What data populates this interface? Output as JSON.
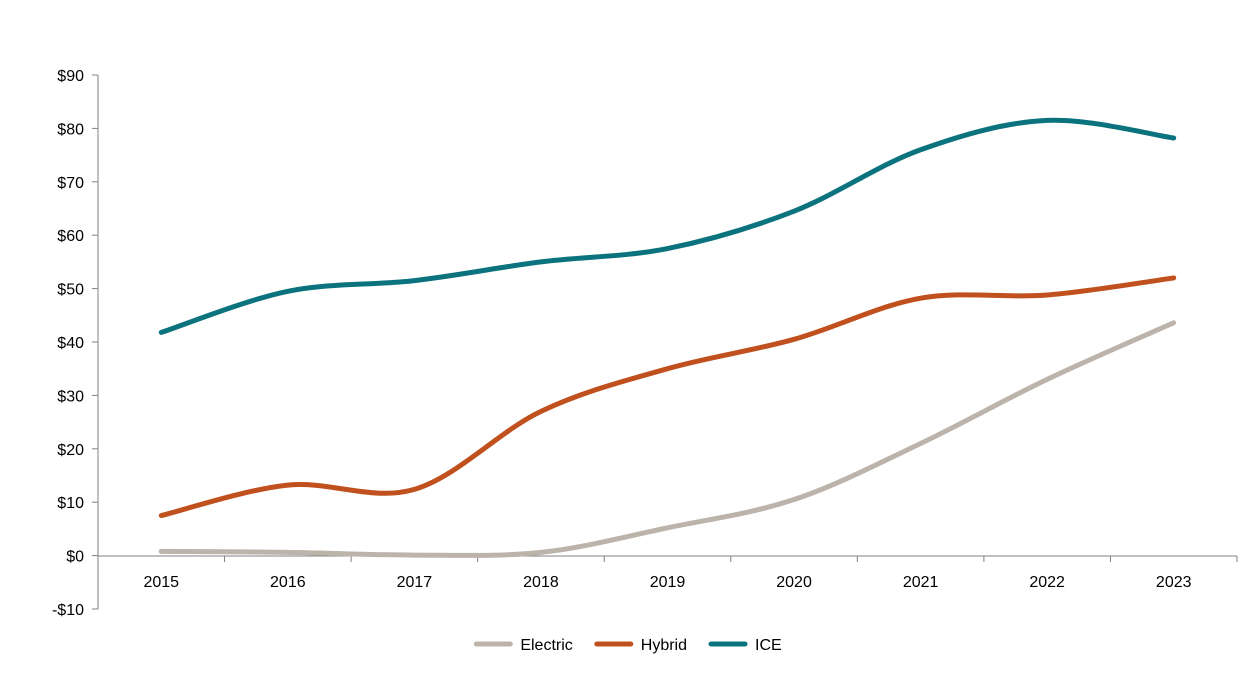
{
  "chart_data": {
    "type": "line",
    "title": "",
    "xlabel": "",
    "ylabel": "",
    "categories": [
      "2015",
      "2016",
      "2017",
      "2018",
      "2019",
      "2020",
      "2021",
      "2022",
      "2023"
    ],
    "ylim": [
      -10,
      90
    ],
    "y_ticks": [
      -10,
      0,
      10,
      20,
      30,
      40,
      50,
      60,
      70,
      80,
      90
    ],
    "y_tick_labels": [
      "-$10",
      "$0",
      "$10",
      "$20",
      "$30",
      "$40",
      "$50",
      "$60",
      "$70",
      "$80",
      "$90"
    ],
    "grid": false,
    "legend_position": "bottom",
    "smooth": true,
    "series": [
      {
        "name": "Electric",
        "color": "#BCB3AA",
        "values": [
          0.8,
          0.6,
          0.1,
          0.6,
          5.2,
          10.5,
          21.0,
          33.0,
          43.6
        ]
      },
      {
        "name": "Hybrid",
        "color": "#C0501E",
        "values": [
          7.5,
          13.2,
          12.4,
          27.0,
          35.0,
          40.5,
          48.2,
          48.8,
          52.0
        ]
      },
      {
        "name": "ICE",
        "color": "#0B737E",
        "values": [
          41.8,
          49.5,
          51.5,
          55.0,
          57.5,
          64.5,
          76.0,
          81.5,
          78.2
        ]
      }
    ]
  }
}
